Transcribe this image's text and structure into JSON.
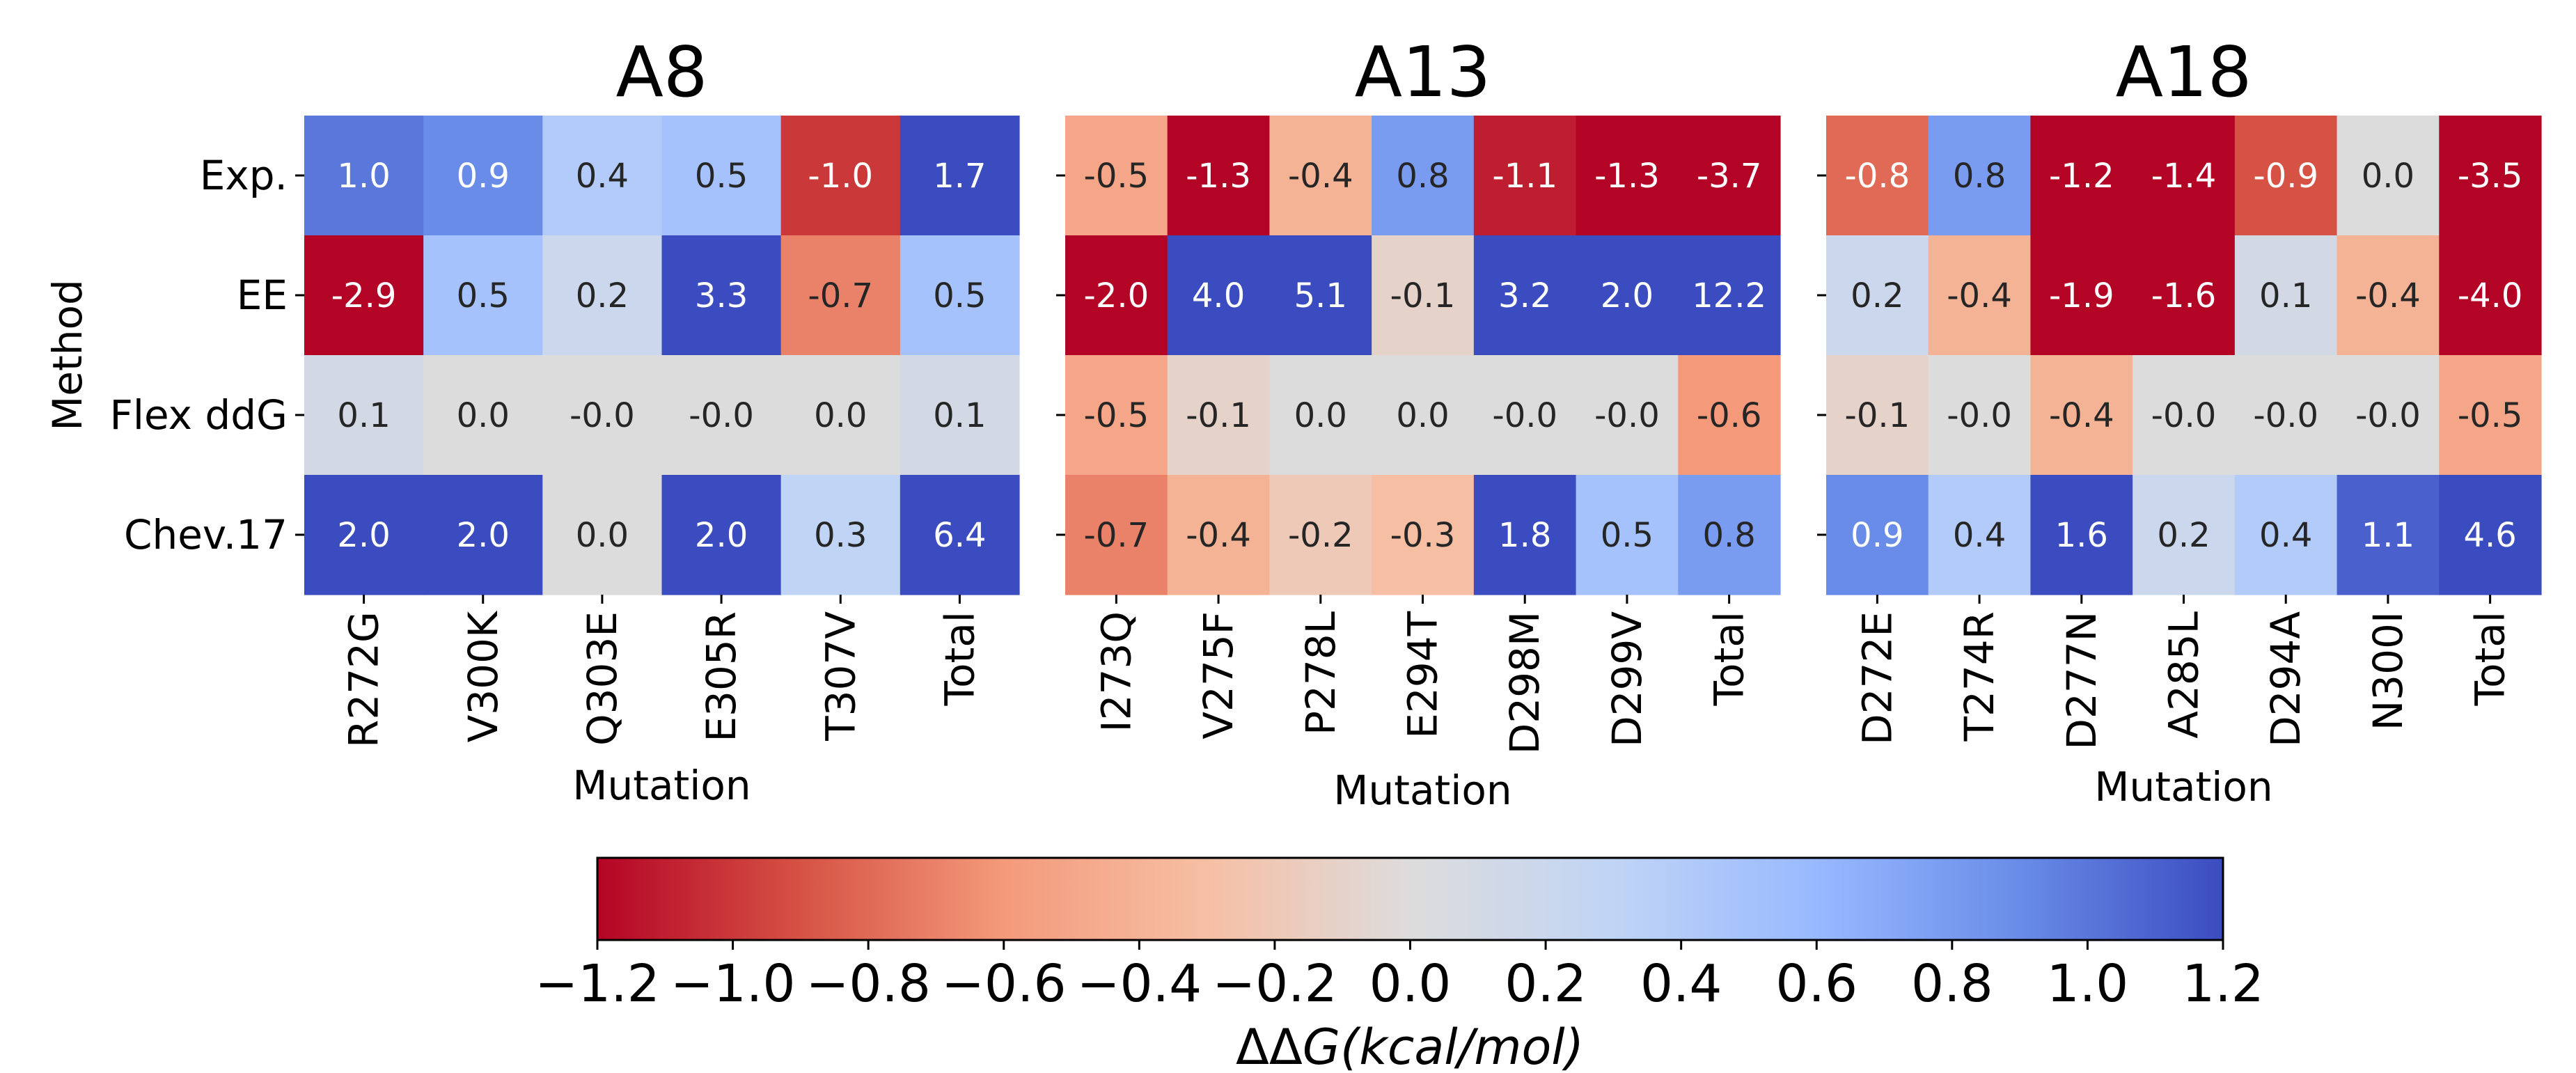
{
  "chart_data": [
    {
      "type": "heatmap",
      "title": "A8",
      "xlabel": "Mutation",
      "ylabel": "Method",
      "rows": [
        "Exp.",
        "EE",
        "Flex ddG",
        "Chev.17"
      ],
      "columns": [
        "R272G",
        "V300K",
        "Q303E",
        "E305R",
        "T307V",
        "Total"
      ],
      "values": [
        [
          1.0,
          0.9,
          0.4,
          0.5,
          -1.0,
          1.7
        ],
        [
          -2.9,
          0.5,
          0.2,
          3.3,
          -0.7,
          0.5
        ],
        [
          0.1,
          0.0,
          -0.0,
          -0.0,
          0.0,
          0.1
        ],
        [
          2.0,
          2.0,
          0.0,
          2.0,
          0.3,
          6.4
        ]
      ],
      "labels": [
        [
          "1.0",
          "0.9",
          "0.4",
          "0.5",
          "-1.0",
          "1.7"
        ],
        [
          "-2.9",
          "0.5",
          "0.2",
          "3.3",
          "-0.7",
          "0.5"
        ],
        [
          "0.1",
          "0.0",
          "-0.0",
          "-0.0",
          "0.0",
          "0.1"
        ],
        [
          "2.0",
          "2.0",
          "0.0",
          "2.0",
          "0.3",
          "6.4"
        ]
      ]
    },
    {
      "type": "heatmap",
      "title": "A13",
      "xlabel": "Mutation",
      "ylabel": "",
      "rows": [
        "Exp.",
        "EE",
        "Flex ddG",
        "Chev.17"
      ],
      "columns": [
        "I273Q",
        "V275F",
        "P278L",
        "E294T",
        "D298M",
        "D299V",
        "Total"
      ],
      "values": [
        [
          -0.5,
          -1.3,
          -0.4,
          0.8,
          -1.1,
          -1.3,
          -3.7
        ],
        [
          -2.0,
          4.0,
          5.1,
          -0.1,
          3.2,
          2.0,
          12.2
        ],
        [
          -0.5,
          -0.1,
          0.0,
          0.0,
          -0.0,
          -0.0,
          -0.6
        ],
        [
          -0.7,
          -0.4,
          -0.2,
          -0.3,
          1.8,
          0.5,
          0.8
        ]
      ],
      "labels": [
        [
          "-0.5",
          "-1.3",
          "-0.4",
          "0.8",
          "-1.1",
          "-1.3",
          "-3.7"
        ],
        [
          "-2.0",
          "4.0",
          "5.1",
          "-0.1",
          "3.2",
          "2.0",
          "12.2"
        ],
        [
          "-0.5",
          "-0.1",
          "0.0",
          "0.0",
          "-0.0",
          "-0.0",
          "-0.6"
        ],
        [
          "-0.7",
          "-0.4",
          "-0.2",
          "-0.3",
          "1.8",
          "0.5",
          "0.8"
        ]
      ]
    },
    {
      "type": "heatmap",
      "title": "A18",
      "xlabel": "Mutation",
      "ylabel": "",
      "rows": [
        "Exp.",
        "EE",
        "Flex ddG",
        "Chev.17"
      ],
      "columns": [
        "D272E",
        "T274R",
        "D277N",
        "A285L",
        "D294A",
        "N300I",
        "Total"
      ],
      "values": [
        [
          -0.8,
          0.8,
          -1.2,
          -1.4,
          -0.9,
          0.0,
          -3.5
        ],
        [
          0.2,
          -0.4,
          -1.9,
          -1.6,
          0.1,
          -0.4,
          -4.0
        ],
        [
          -0.1,
          -0.0,
          -0.4,
          -0.0,
          -0.0,
          -0.0,
          -0.5
        ],
        [
          0.9,
          0.4,
          1.6,
          0.2,
          0.4,
          1.1,
          4.6
        ]
      ],
      "labels": [
        [
          "-0.8",
          "0.8",
          "-1.2",
          "-1.4",
          "-0.9",
          "0.0",
          "-3.5"
        ],
        [
          "0.2",
          "-0.4",
          "-1.9",
          "-1.6",
          "0.1",
          "-0.4",
          "-4.0"
        ],
        [
          "-0.1",
          "-0.0",
          "-0.4",
          "-0.0",
          "-0.0",
          "-0.0",
          "-0.5"
        ],
        [
          "0.9",
          "0.4",
          "1.6",
          "0.2",
          "0.4",
          "1.1",
          "4.6"
        ]
      ]
    }
  ],
  "colorbar": {
    "colormap": "coolwarm_r",
    "range": [
      -1.2,
      1.2
    ],
    "ticks": [
      "−1.2",
      "−1.0",
      "−0.8",
      "−0.6",
      "−0.4",
      "−0.2",
      "0.0",
      "0.2",
      "0.4",
      "0.6",
      "0.8",
      "1.0",
      "1.2"
    ],
    "label_prefix": "ΔΔ",
    "label_italic": "G(kcal/mol)",
    "orientation": "horizontal"
  },
  "colors": {
    "negative": "#b40426",
    "neutral": "#dddcdc",
    "positive": "#3b4cc0"
  }
}
